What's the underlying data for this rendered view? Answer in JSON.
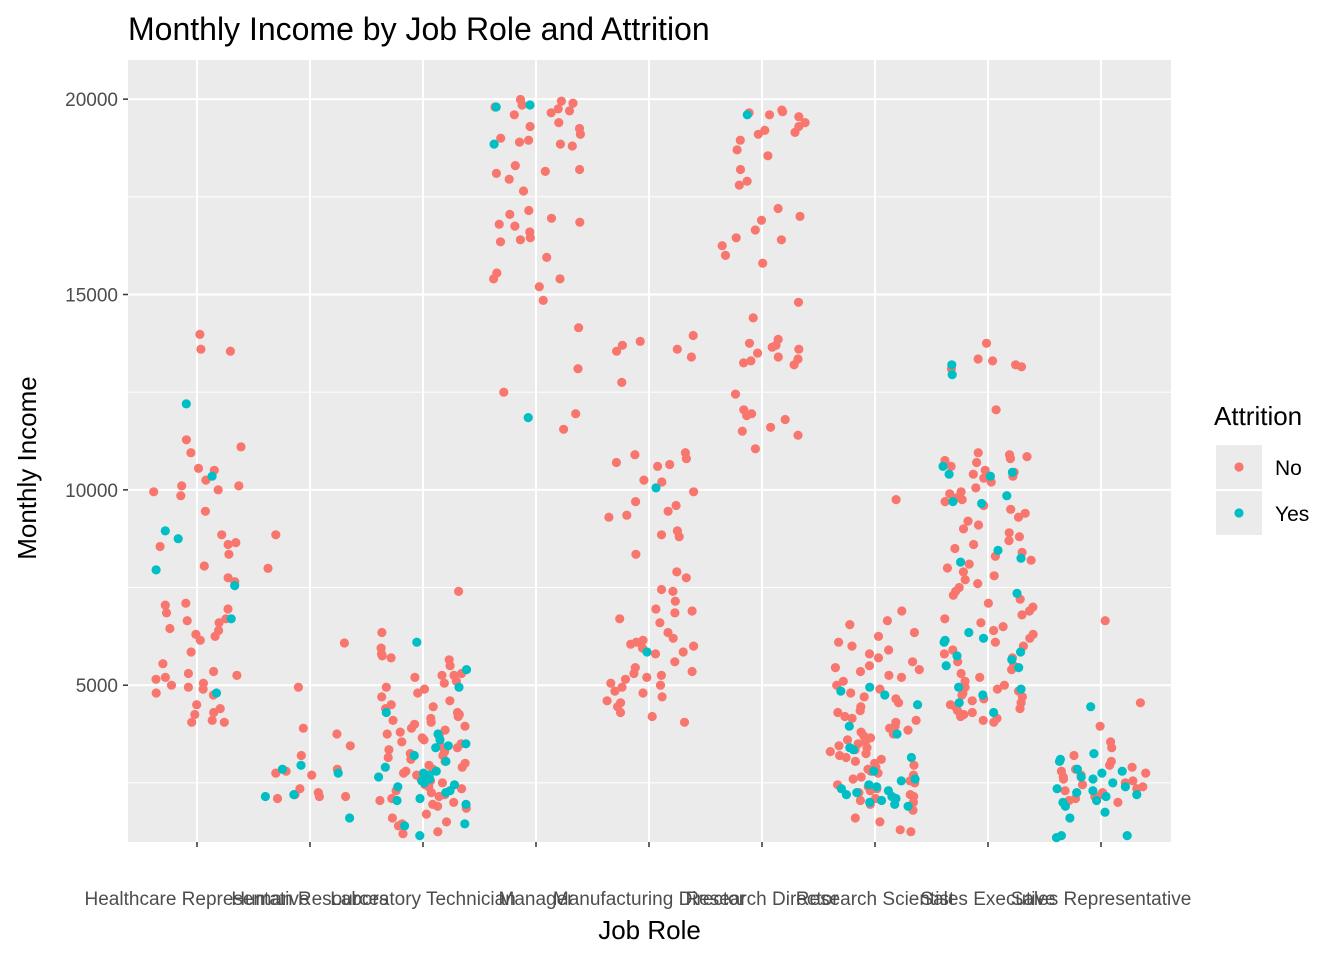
{
  "chart_data": {
    "type": "scatter",
    "title": "Monthly Income by Job Role and Attrition",
    "xlabel": "Job Role",
    "ylabel": "Monthly Income",
    "ylim": [
      0,
      21000
    ],
    "yticks": [
      5000,
      10000,
      15000,
      20000
    ],
    "yticks_label": [
      "5000",
      "10000",
      "15000",
      "20000"
    ],
    "categories": [
      "Healthcare Representative",
      "Human Resources",
      "Laboratory Technician",
      "Manager",
      "Manufacturing Director",
      "Research Director",
      "Research Scientist",
      "Sales Executive",
      "Sales Representative"
    ],
    "jitter": 0.4,
    "legend": {
      "title": "Attrition",
      "position": "right",
      "entries": [
        "No",
        "Yes"
      ]
    },
    "colors": {
      "No": "#f8766d",
      "Yes": "#00bfc4",
      "panel": "#ebebeb",
      "grid": "#ffffff"
    },
    "series": [
      {
        "name": "No",
        "points": [
          {
            "cat": "Healthcare Representative",
            "values": [
              13980,
              13600,
              13550,
              11280,
              11100,
              10950,
              10550,
              10500,
              10250,
              10100,
              10100,
              10000,
              9950,
              9850,
              9450,
              8850,
              8650,
              8600,
              8550,
              8350,
              8050,
              7750,
              7650,
              7100,
              7050,
              6950,
              6850,
              6700,
              6650,
              6600,
              6450,
              6400,
              6300,
              6250,
              6150,
              5850,
              5550,
              5350,
              5300,
              5250,
              5200,
              5150,
              5050,
              5000,
              4950,
              4900,
              4800,
              4750,
              4500,
              4400,
              4300,
              4250,
              4100,
              4050,
              4050
            ]
          },
          {
            "cat": "Human Resources",
            "values": [
              8850,
              7990,
              6080,
              4950,
              3900,
              3750,
              3450,
              3200,
              2850,
              2800,
              2750,
              2700,
              2350,
              2250,
              2200,
              2150,
              2150,
              2100
            ]
          },
          {
            "cat": "Laboratory Technician",
            "values": [
              7400,
              6350,
              5950,
              5800,
              5750,
              5700,
              5650,
              5500,
              5300,
              5250,
              5250,
              5200,
              5100,
              5050,
              4950,
              4900,
              4800,
              4700,
              4600,
              4500,
              4450,
              4400,
              4300,
              4250,
              4200,
              4150,
              4100,
              4050,
              4000,
              3950,
              3900,
              3850,
              3800,
              3750,
              3700,
              3650,
              3600,
              3550,
              3500,
              3450,
              3400,
              3350,
              3300,
              3250,
              3200,
              3150,
              3100,
              3050,
              3000,
              2950,
              2900,
              2850,
              2800,
              2750,
              2700,
              2650,
              2600,
              2550,
              2500,
              2450,
              2400,
              2350,
              2300,
              2250,
              2200,
              2150,
              2100,
              2050,
              2000,
              1950,
              1900,
              1850,
              1700,
              1600,
              1500,
              1450,
              1400,
              1250,
              1200
            ]
          },
          {
            "cat": "Manager",
            "values": [
              19990,
              19950,
              19900,
              19850,
              19800,
              19750,
              19700,
              19650,
              19600,
              19400,
              19300,
              19250,
              19100,
              19000,
              18950,
              18900,
              18850,
              18800,
              18300,
              18200,
              18150,
              18100,
              17950,
              17650,
              17150,
              17050,
              16950,
              16850,
              16800,
              16750,
              16600,
              16450,
              16400,
              16350,
              15950,
              15550,
              15400,
              15400,
              15200,
              14850,
              14150,
              13100,
              12500,
              11950,
              11550
            ]
          },
          {
            "cat": "Manufacturing Director",
            "values": [
              13950,
              13800,
              13700,
              13600,
              13550,
              13400,
              12750,
              10950,
              10900,
              10800,
              10700,
              10650,
              10600,
              10250,
              10200,
              9950,
              9700,
              9600,
              9450,
              9350,
              9300,
              8950,
              8850,
              8800,
              8350,
              7900,
              7750,
              7450,
              7400,
              7150,
              6950,
              6900,
              6850,
              6700,
              6600,
              6350,
              6200,
              6150,
              6100,
              6050,
              6000,
              5950,
              5850,
              5800,
              5600,
              5450,
              5350,
              5300,
              5250,
              5200,
              5150,
              5050,
              5000,
              4950,
              4850,
              4800,
              4700,
              4600,
              4550,
              4450,
              4300,
              4200,
              4050
            ]
          },
          {
            "cat": "Research Director",
            "values": [
              19720,
              19680,
              19650,
              19600,
              19550,
              19400,
              19300,
              19200,
              19150,
              19100,
              18950,
              18700,
              18550,
              18200,
              17900,
              17800,
              17200,
              17000,
              16900,
              16650,
              16450,
              16400,
              16250,
              16000,
              15800,
              14800,
              14400,
              13850,
              13750,
              13700,
              13650,
              13600,
              13500,
              13400,
              13350,
              13300,
              13250,
              13200,
              12450,
              12050,
              11950,
              11900,
              11800,
              11600,
              11500,
              11400,
              11050
            ]
          },
          {
            "cat": "Research Scientist",
            "values": [
              9750,
              6900,
              6650,
              6550,
              6350,
              6250,
              6100,
              6000,
              5900,
              5800,
              5700,
              5600,
              5500,
              5450,
              5400,
              5350,
              5250,
              5200,
              5100,
              5000,
              4900,
              4800,
              4700,
              4650,
              4550,
              4450,
              4350,
              4300,
              4200,
              4150,
              4100,
              4050,
              3950,
              3900,
              3850,
              3800,
              3750,
              3700,
              3650,
              3600,
              3550,
              3500,
              3450,
              3400,
              3350,
              3300,
              3250,
              3200,
              3150,
              3100,
              3050,
              3000,
              2950,
              2900,
              2850,
              2800,
              2750,
              2700,
              2650,
              2600,
              2550,
              2500,
              2450,
              2400,
              2350,
              2300,
              2250,
              2200,
              2150,
              2100,
              2050,
              2000,
              1950,
              1800,
              1600,
              1500,
              1300,
              1250
            ]
          },
          {
            "cat": "Sales Executive",
            "values": [
              13750,
              13350,
              13300,
              13200,
              13150,
              13100,
              12050,
              10950,
              10900,
              10850,
              10800,
              10750,
              10700,
              10600,
              10500,
              10450,
              10400,
              10350,
              10300,
              10200,
              10050,
              9950,
              9900,
              9800,
              9750,
              9700,
              9600,
              9500,
              9400,
              9300,
              9200,
              9100,
              9000,
              8900,
              8800,
              8700,
              8600,
              8500,
              8400,
              8300,
              8200,
              8100,
              8000,
              7900,
              7800,
              7700,
              7600,
              7500,
              7400,
              7300,
              7200,
              7100,
              7000,
              6900,
              6800,
              6700,
              6600,
              6500,
              6400,
              6300,
              6200,
              6100,
              6000,
              5900,
              5800,
              5700,
              5600,
              5500,
              5400,
              5300,
              5200,
              5100,
              5000,
              4950,
              4900,
              4850,
              4800,
              4750,
              4700,
              4650,
              4600,
              4550,
              4500,
              4450,
              4400,
              4350,
              4300,
              4250,
              4200,
              4150,
              4100,
              4050
            ]
          },
          {
            "cat": "Sales Representative",
            "values": [
              6650,
              4550,
              3950,
              3550,
              3400,
              3200,
              3050,
              2950,
              2900,
              2850,
              2800,
              2750,
              2700,
              2650,
              2600,
              2550,
              2500,
              2450,
              2400,
              2350,
              2300,
              2250,
              2200,
              2150,
              2100,
              2050,
              2000
            ]
          }
        ]
      },
      {
        "name": "Yes",
        "points": [
          {
            "cat": "Healthcare Representative",
            "values": [
              12200,
              10350,
              8950,
              8750,
              7950,
              7550,
              6700,
              4800
            ]
          },
          {
            "cat": "Human Resources",
            "values": [
              2950,
              2850,
              2750,
              2200,
              2150,
              1600
            ]
          },
          {
            "cat": "Laboratory Technician",
            "values": [
              6100,
              5400,
              4950,
              4300,
              3750,
              3600,
              3500,
              3450,
              3400,
              3200,
              3050,
              2900,
              2800,
              2750,
              2700,
              2650,
              2600,
              2550,
              2500,
              2450,
              2400,
              2300,
              2250,
              2100,
              2050,
              1950,
              1450,
              1400,
              1150
            ]
          },
          {
            "cat": "Manager",
            "values": [
              19850,
              19800,
              18850,
              11850
            ]
          },
          {
            "cat": "Manufacturing Director",
            "values": [
              10050,
              5850
            ]
          },
          {
            "cat": "Research Director",
            "values": [
              19600
            ]
          },
          {
            "cat": "Research Scientist",
            "values": [
              4950,
              4850,
              4750,
              4500,
              3950,
              3750,
              3400,
              3350,
              3150,
              2800,
              2600,
              2550,
              2450,
              2400,
              2350,
              2300,
              2250,
              2200,
              2150,
              2100,
              2050,
              2000,
              1950,
              1900
            ]
          },
          {
            "cat": "Sales Executive",
            "values": [
              13200,
              12950,
              10600,
              10450,
              10400,
              10350,
              9850,
              9700,
              9650,
              8450,
              8250,
              8150,
              7350,
              6350,
              6200,
              6150,
              6100,
              5850,
              5750,
              5650,
              5500,
              5450,
              4950,
              4900,
              4750,
              4550,
              4300
            ]
          },
          {
            "cat": "Sales Representative",
            "values": [
              4450,
              3250,
              3100,
              3050,
              2850,
              2800,
              2750,
              2650,
              2600,
              2500,
              2400,
              2350,
              2300,
              2250,
              2200,
              2150,
              2050,
              2000,
              1900,
              1750,
              1600,
              1150,
              1150,
              1100
            ]
          }
        ]
      }
    ]
  }
}
